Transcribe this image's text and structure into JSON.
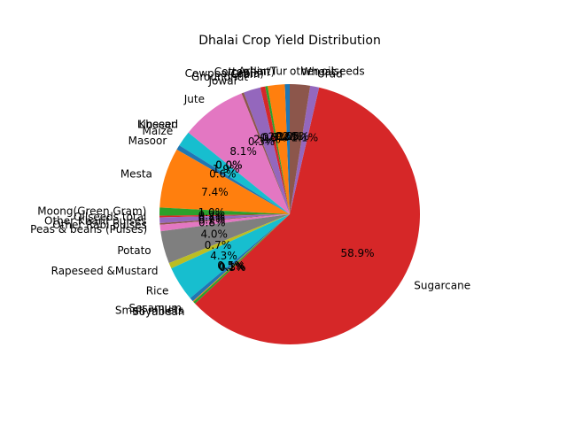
{
  "chart_data": {
    "type": "pie",
    "title": "Dhalai Crop Yield Distribution",
    "start_angle_deg": 90,
    "direction": "counterclockwise",
    "slices": [
      {
        "label": "Arhar/Tur",
        "value": 0.6,
        "pct_label": "0.6%",
        "color": "#1f77b4"
      },
      {
        "label": "Cotton(lint)",
        "value": 2.1,
        "pct_label": "2.1%",
        "color": "#ff7f0e"
      },
      {
        "label": "Cowpea(Lobia)",
        "value": 0.3,
        "pct_label": "0.3%",
        "color": "#2ca02c"
      },
      {
        "label": "Gram",
        "value": 0.6,
        "pct_label": "0.6%",
        "color": "#d62728"
      },
      {
        "label": "Groundnut",
        "value": 2.1,
        "pct_label": "2.1%",
        "color": "#9467bd"
      },
      {
        "label": "Jowar",
        "value": 0.3,
        "pct_label": "0.3%",
        "color": "#8c564b"
      },
      {
        "label": "Jute",
        "value": 8.1,
        "pct_label": "8.1%",
        "color": "#e377c2"
      },
      {
        "label": "Khesari",
        "value": 0.0,
        "pct_label": "0.0%",
        "color": "#7f7f7f"
      },
      {
        "label": "Linseed",
        "value": 0.0,
        "pct_label": "0.0%",
        "color": "#bcbd22"
      },
      {
        "label": "Maize",
        "value": 1.9,
        "pct_label": "1.9%",
        "color": "#17becf"
      },
      {
        "label": "Masoor",
        "value": 0.6,
        "pct_label": "0.6%",
        "color": "#1f77b4"
      },
      {
        "label": "Mesta",
        "value": 7.4,
        "pct_label": "7.4%",
        "color": "#ff7f0e"
      },
      {
        "label": "Moong(Green Gram)",
        "value": 1.0,
        "pct_label": "1.0%",
        "color": "#2ca02c"
      },
      {
        "label": "Oilseeds total",
        "value": 0.2,
        "pct_label": "0.2%",
        "color": "#d62728"
      },
      {
        "label": "Other Kharif pulses",
        "value": 0.7,
        "pct_label": "0.7%",
        "color": "#9467bd"
      },
      {
        "label": "Other Rabi pulses",
        "value": 0.2,
        "pct_label": "0.2%",
        "color": "#8c564b"
      },
      {
        "label": "Peas & beans (Pulses)",
        "value": 0.8,
        "pct_label": "0.8%",
        "color": "#e377c2"
      },
      {
        "label": "Potato",
        "value": 4.0,
        "pct_label": "4.0%",
        "color": "#7f7f7f"
      },
      {
        "label": "Rapeseed &Mustard",
        "value": 0.7,
        "pct_label": "0.7%",
        "color": "#bcbd22"
      },
      {
        "label": "Rice",
        "value": 4.3,
        "pct_label": "4.3%",
        "color": "#17becf"
      },
      {
        "label": "Sesamum",
        "value": 0.5,
        "pct_label": "0.5%",
        "color": "#1f77b4"
      },
      {
        "label": "Small millets",
        "value": 0.1,
        "pct_label": "0.1%",
        "color": "#ff7f0e"
      },
      {
        "label": "Soyabean",
        "value": 0.3,
        "pct_label": "0.3%",
        "color": "#2ca02c"
      },
      {
        "label": "Sugarcane",
        "value": 58.9,
        "pct_label": "58.9%",
        "color": "#d62728"
      },
      {
        "label": "Urad",
        "value": 1.1,
        "pct_label": "1.1%",
        "color": "#9467bd"
      },
      {
        "label": "Wheat",
        "value": 2.5,
        "pct_label": "2.5%",
        "color": "#8c564b"
      },
      {
        "label": "other oilseeds",
        "value": 0.0,
        "pct_label": "0.0%",
        "color": "#e377c2"
      }
    ]
  }
}
